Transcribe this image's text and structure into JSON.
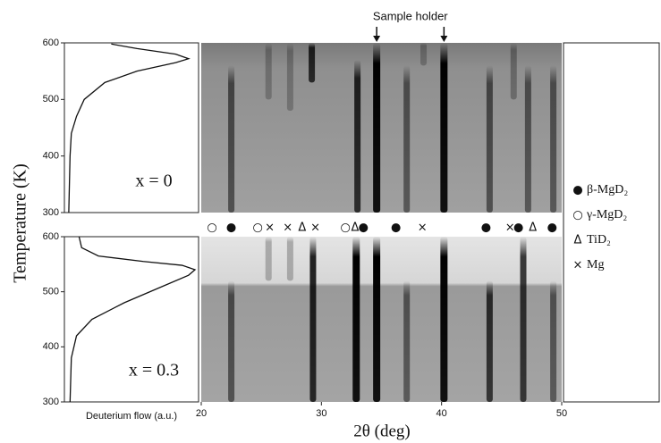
{
  "y_label": "Temperature (K)",
  "flow_label": "Deuterium flow (a.u.)",
  "x_label": "2θ (deg)",
  "phase_markers": [
    {
      "symbol": "○",
      "position": 20.9
    },
    {
      "symbol": "●",
      "position": 22.5
    },
    {
      "symbol": "○",
      "position": 24.7
    },
    {
      "symbol": "×",
      "position": 25.7
    },
    {
      "symbol": "×",
      "position": 27.2
    },
    {
      "symbol": "Δ",
      "position": 28.4
    },
    {
      "symbol": "×",
      "position": 29.5
    },
    {
      "symbol": "○",
      "position": 32.0
    },
    {
      "symbol": "Δ",
      "position": 32.8
    },
    {
      "symbol": "●",
      "position": 33.5
    },
    {
      "symbol": "●",
      "position": 36.2
    },
    {
      "symbol": "×",
      "position": 38.4
    },
    {
      "symbol": "●",
      "position": 43.7
    },
    {
      "symbol": "×",
      "position": 45.7
    },
    {
      "symbol": "●",
      "position": 46.4
    },
    {
      "symbol": "Δ",
      "position": 47.6
    },
    {
      "symbol": "●",
      "position": 49.2
    }
  ],
  "legend": [
    {
      "symbol": "●",
      "name": "β-MgD₂"
    },
    {
      "symbol": "○",
      "name": "γ-MgD₂"
    },
    {
      "symbol": "Δ",
      "name": "TiD₂"
    },
    {
      "symbol": "×",
      "name": "Mg"
    }
  ],
  "chart_data": [
    {
      "type": "line",
      "annotation": "x = 0",
      "ylim": [
        300,
        600
      ],
      "yticks": [
        300,
        400,
        500,
        600
      ],
      "xlim": [
        0,
        1
      ],
      "x": [
        0.02,
        0.03,
        0.04,
        0.08,
        0.14,
        0.3,
        0.55,
        0.85,
        0.95,
        0.85,
        0.55,
        0.35
      ],
      "y": [
        300,
        400,
        440,
        470,
        500,
        530,
        550,
        565,
        572,
        580,
        590,
        598
      ]
    },
    {
      "type": "heatmap",
      "xlim": [
        20,
        50
      ],
      "ylim": [
        300,
        600
      ],
      "sample_holder": {
        "label": "Sample holder",
        "positions": [
          34.6,
          40.2
        ]
      },
      "peaks": [
        {
          "position": 22.5,
          "tmin": 300,
          "tmax": 560,
          "intensity": 0.55
        },
        {
          "position": 25.6,
          "tmin": 500,
          "tmax": 600,
          "intensity": 0.25
        },
        {
          "position": 27.4,
          "tmin": 480,
          "tmax": 600,
          "intensity": 0.25
        },
        {
          "position": 29.2,
          "tmin": 530,
          "tmax": 600,
          "intensity": 0.8
        },
        {
          "position": 33.0,
          "tmin": 300,
          "tmax": 570,
          "intensity": 0.8
        },
        {
          "position": 34.6,
          "tmin": 300,
          "tmax": 600,
          "intensity": 1
        },
        {
          "position": 37.1,
          "tmin": 300,
          "tmax": 560,
          "intensity": 0.5
        },
        {
          "position": 38.5,
          "tmin": 560,
          "tmax": 600,
          "intensity": 0.25
        },
        {
          "position": 40.2,
          "tmin": 300,
          "tmax": 600,
          "intensity": 1
        },
        {
          "position": 44.0,
          "tmin": 300,
          "tmax": 560,
          "intensity": 0.55
        },
        {
          "position": 46.0,
          "tmin": 500,
          "tmax": 600,
          "intensity": 0.3
        },
        {
          "position": 47.2,
          "tmin": 300,
          "tmax": 560,
          "intensity": 0.5
        },
        {
          "position": 49.3,
          "tmin": 300,
          "tmax": 560,
          "intensity": 0.5
        }
      ]
    },
    {
      "type": "line",
      "annotation": "x = 0.3",
      "ylim": [
        300,
        600
      ],
      "yticks": [
        300,
        400,
        500,
        600
      ],
      "xlim": [
        0,
        1
      ],
      "x": [
        0.03,
        0.04,
        0.08,
        0.2,
        0.45,
        0.75,
        0.95,
        1.0,
        0.9,
        0.6,
        0.25,
        0.12,
        0.1
      ],
      "y": [
        300,
        380,
        420,
        450,
        480,
        510,
        530,
        540,
        548,
        555,
        565,
        580,
        600
      ]
    },
    {
      "type": "heatmap",
      "xlim": [
        20,
        50
      ],
      "ylim": [
        300,
        600
      ],
      "xticks": [
        20,
        30,
        40,
        50
      ],
      "peaks": [
        {
          "position": 22.5,
          "tmin": 300,
          "tmax": 520,
          "intensity": 0.55
        },
        {
          "position": 25.6,
          "tmin": 520,
          "tmax": 600,
          "intensity": 0.25
        },
        {
          "position": 27.4,
          "tmin": 520,
          "tmax": 600,
          "intensity": 0.25
        },
        {
          "position": 29.3,
          "tmin": 300,
          "tmax": 600,
          "intensity": 0.85
        },
        {
          "position": 32.9,
          "tmin": 300,
          "tmax": 600,
          "intensity": 1
        },
        {
          "position": 34.6,
          "tmin": 300,
          "tmax": 600,
          "intensity": 1
        },
        {
          "position": 37.1,
          "tmin": 300,
          "tmax": 520,
          "intensity": 0.5
        },
        {
          "position": 40.2,
          "tmin": 300,
          "tmax": 600,
          "intensity": 1
        },
        {
          "position": 44.0,
          "tmin": 300,
          "tmax": 520,
          "intensity": 0.75
        },
        {
          "position": 46.8,
          "tmin": 300,
          "tmax": 600,
          "intensity": 0.75
        },
        {
          "position": 49.3,
          "tmin": 300,
          "tmax": 520,
          "intensity": 0.5
        }
      ]
    }
  ]
}
